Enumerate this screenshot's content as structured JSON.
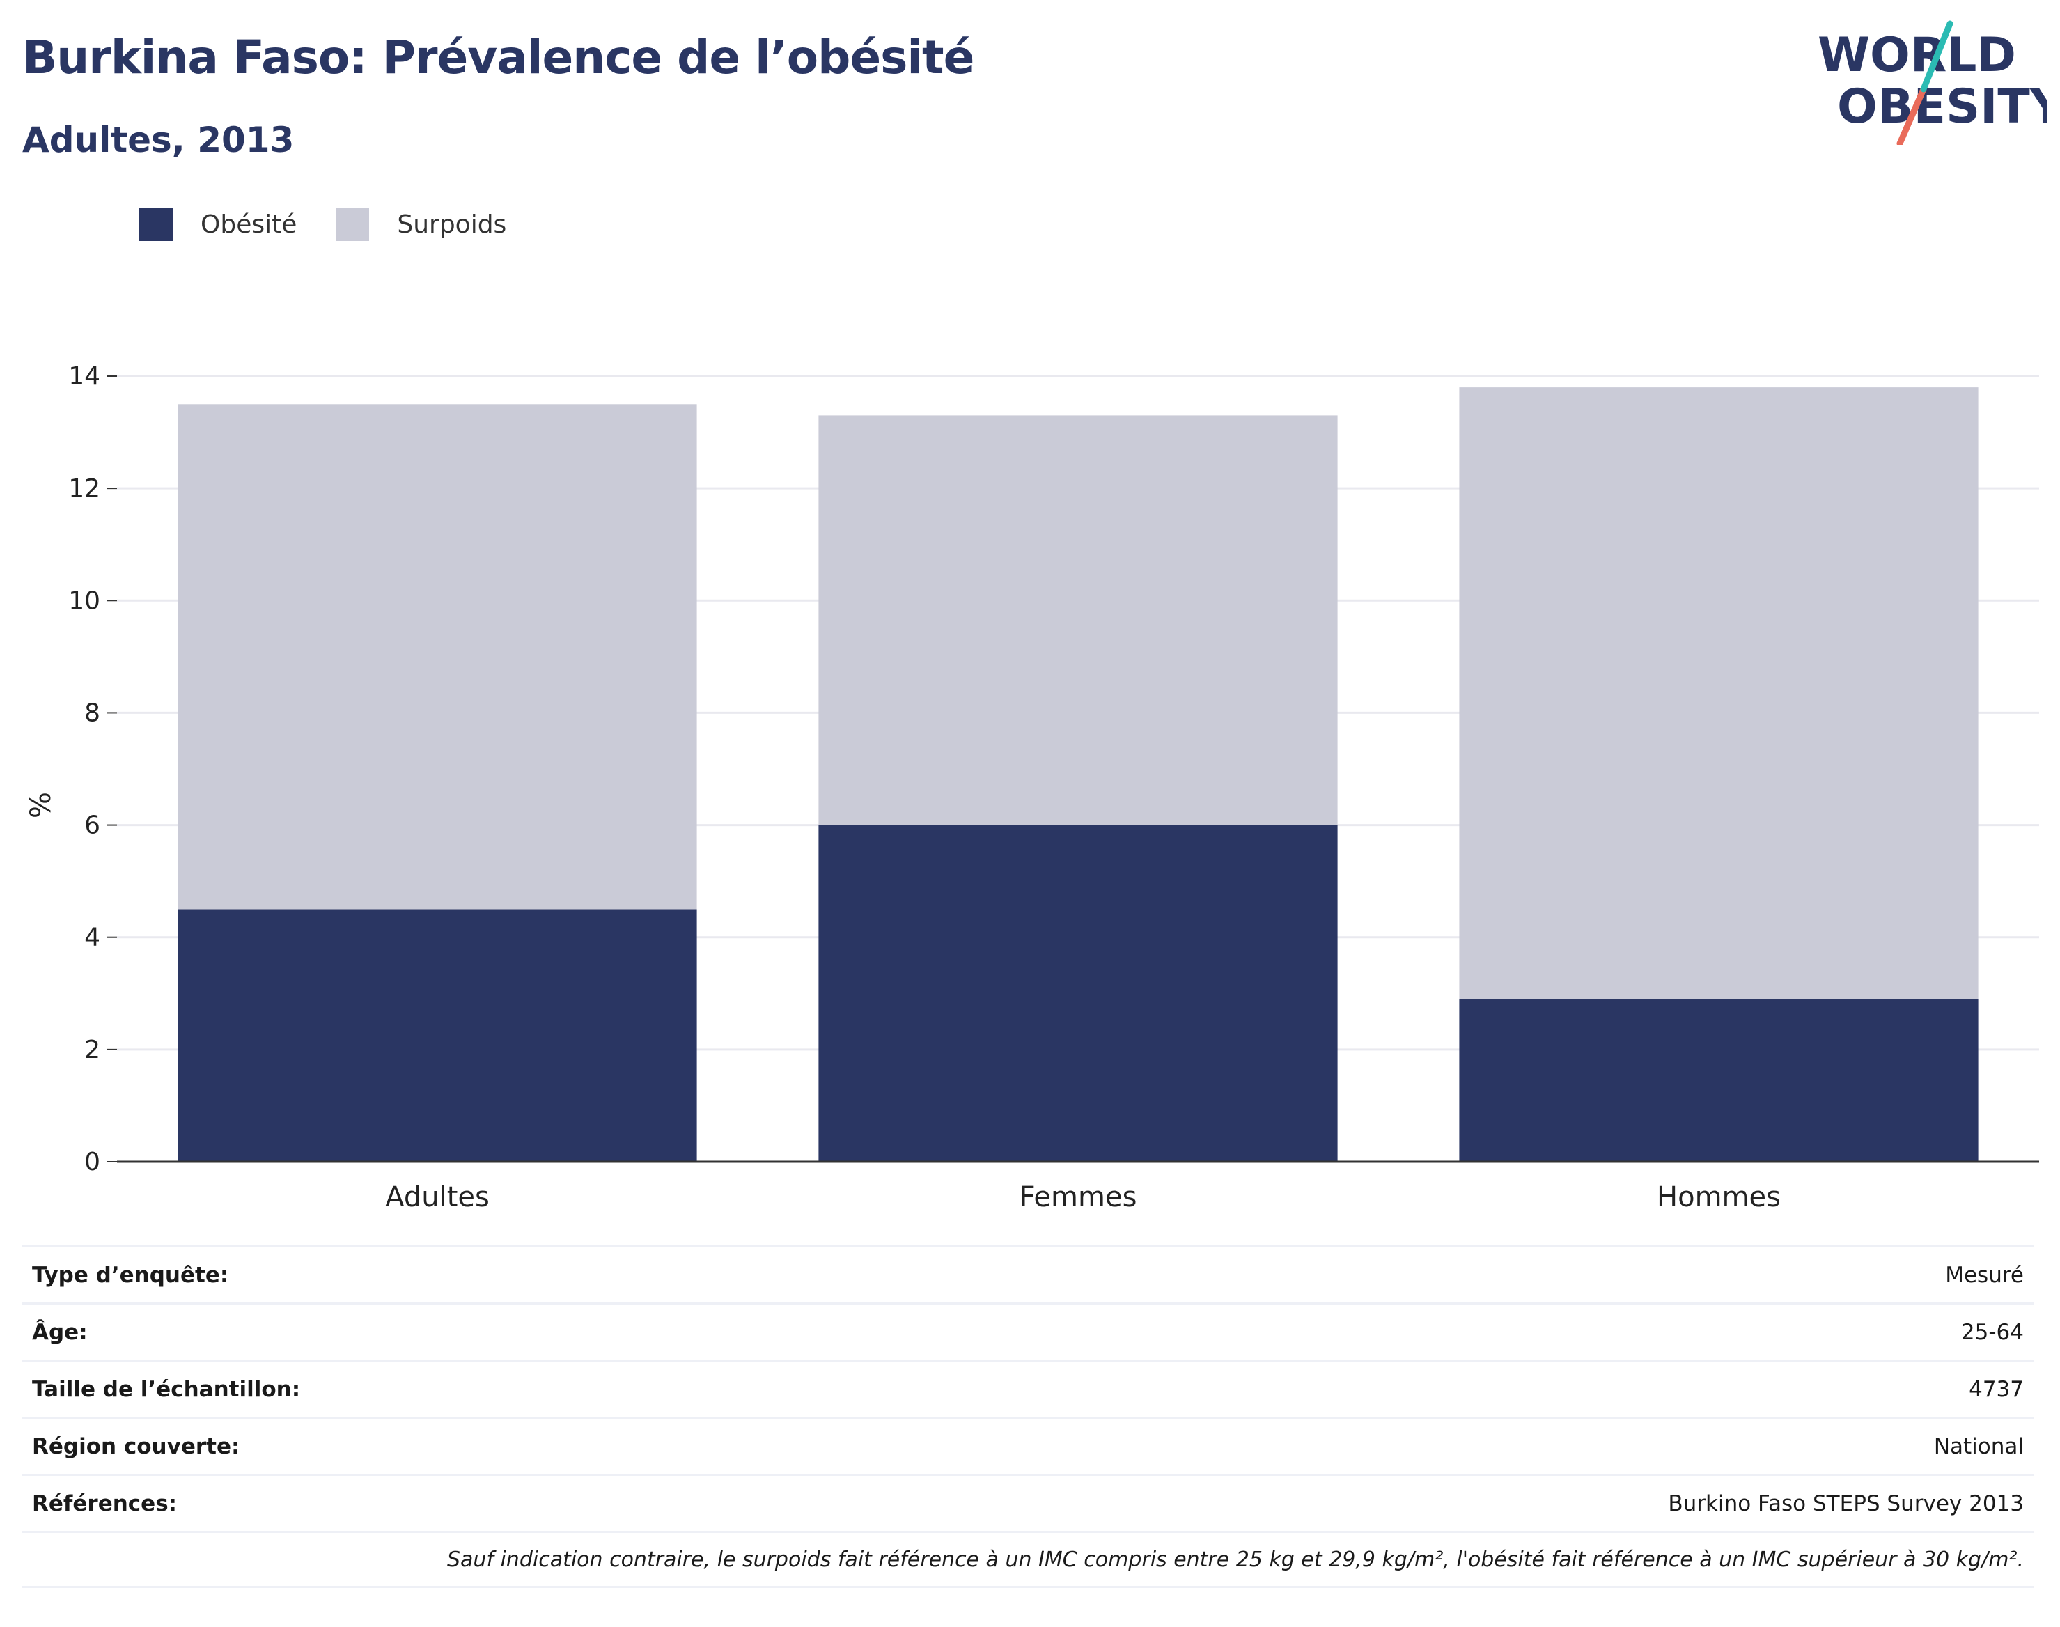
{
  "header": {
    "title": "Burkina Faso: Prévalence de l’obésité",
    "subtitle": "Adultes, 2013"
  },
  "logo": {
    "line1": "WORLD",
    "line2": "OBESITY"
  },
  "colors": {
    "obesite": "#2a3663",
    "surpoids": "#cacbd7",
    "grid": "#e9e9ef",
    "axis": "#333333",
    "logo_teal": "#2bbbb3",
    "logo_coral": "#e96b5a"
  },
  "chart_data": {
    "type": "bar",
    "stacked": true,
    "categories": [
      "Adultes",
      "Femmes",
      "Hommes"
    ],
    "series": [
      {
        "name": "Obésité",
        "values": [
          4.5,
          6.0,
          2.9
        ]
      },
      {
        "name": "Surpoids",
        "values": [
          9.0,
          7.3,
          10.9
        ]
      }
    ],
    "ylabel": "%",
    "ylim": [
      0,
      14
    ],
    "yticks": [
      0,
      2,
      4,
      6,
      8,
      10,
      12,
      14
    ],
    "grid": true,
    "legend_position": "top-left"
  },
  "info": {
    "rows": [
      {
        "label": "Type d’enquête:",
        "value": "Mesuré"
      },
      {
        "label": "Âge:",
        "value": "25-64"
      },
      {
        "label": "Taille de l’échantillon:",
        "value": "4737"
      },
      {
        "label": "Région couverte:",
        "value": "National"
      },
      {
        "label": "Références:",
        "value": "Burkino Faso STEPS Survey 2013"
      }
    ],
    "note": "Sauf indication contraire, le surpoids fait référence à un IMC compris entre 25 kg et 29,9 kg/m², l'obésité fait référence à un IMC supérieur à 30 kg/m²."
  }
}
